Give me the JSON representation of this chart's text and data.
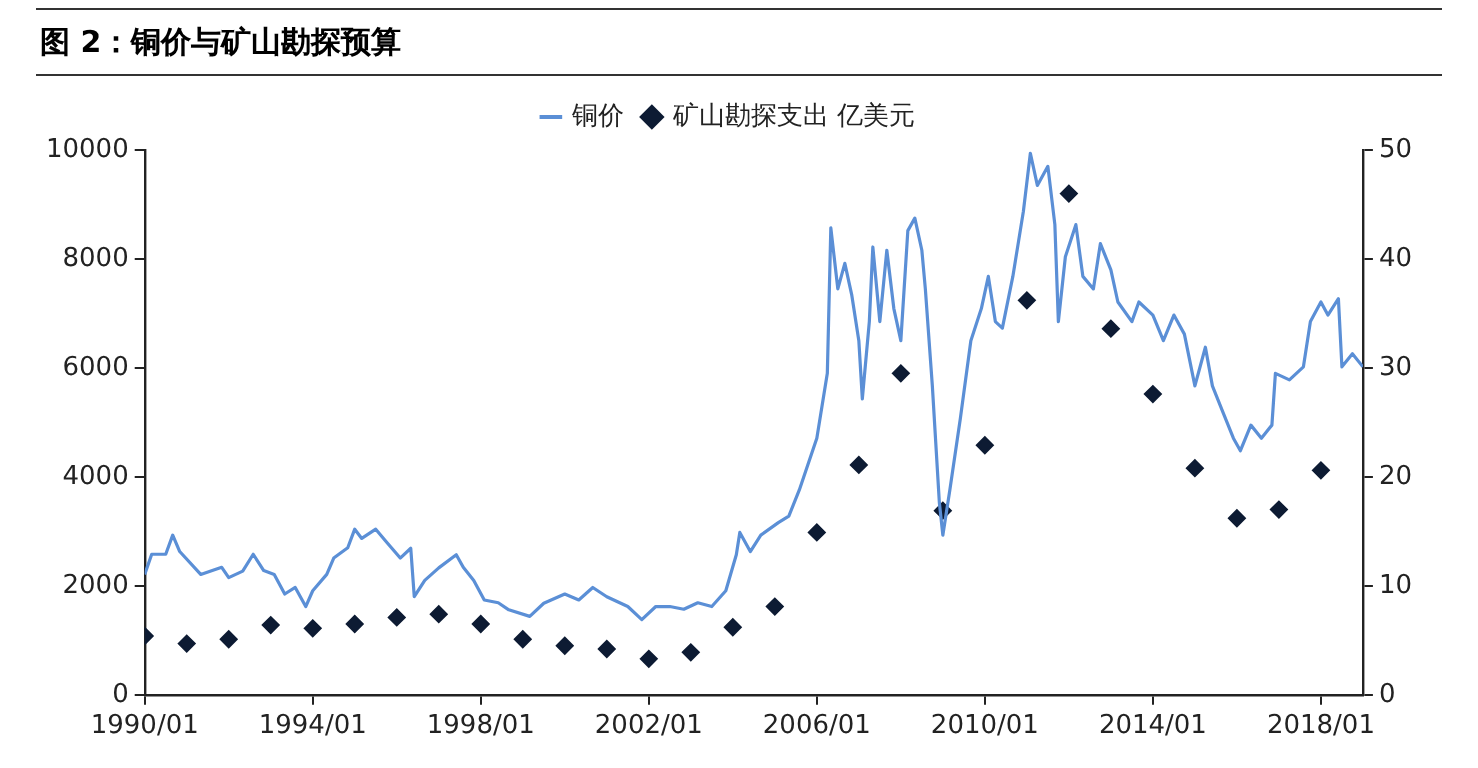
{
  "chart_data": {
    "type": "line",
    "title": "图 2：铜价与矿山勘探预算",
    "xlim": [
      "1990-01",
      "2019-01"
    ],
    "xticks": [
      {
        "value": "1990-01",
        "label": "1990/01"
      },
      {
        "value": "1994-01",
        "label": "1994/01"
      },
      {
        "value": "1998-01",
        "label": "1998/01"
      },
      {
        "value": "2002-01",
        "label": "2002/01"
      },
      {
        "value": "2006-01",
        "label": "2006/01"
      },
      {
        "value": "2010-01",
        "label": "2010/01"
      },
      {
        "value": "2014-01",
        "label": "2014/01"
      },
      {
        "value": "2018-01",
        "label": "2018/01"
      }
    ],
    "ylim": [
      0,
      10000
    ],
    "yticks": [
      0,
      2000,
      4000,
      6000,
      8000,
      10000
    ],
    "y2lim": [
      0,
      50
    ],
    "y2ticks": [
      0,
      10,
      20,
      30,
      40,
      50
    ],
    "grid": false,
    "legend": "top",
    "series": [
      {
        "name": "铜价",
        "color": "#5b8fd6",
        "marker": "none",
        "line_style": "solid",
        "x": [
          "1990-01",
          "1990-03",
          "1990-07",
          "1990-09",
          "1990-11",
          "1991-05",
          "1991-11",
          "1992-01",
          "1992-05",
          "1992-08",
          "1992-11",
          "1993-02",
          "1993-05",
          "1993-08",
          "1993-11",
          "1994-01",
          "1994-05",
          "1994-07",
          "1994-11",
          "1995-01",
          "1995-03",
          "1995-07",
          "1995-10",
          "1996-02",
          "1996-05",
          "1996-06",
          "1996-09",
          "1997-01",
          "1997-06",
          "1997-08",
          "1997-11",
          "1998-02",
          "1998-06",
          "1998-09",
          "1999-03",
          "1999-07",
          "2000-01",
          "2000-05",
          "2000-09",
          "2001-01",
          "2001-07",
          "2001-11",
          "2002-03",
          "2002-07",
          "2002-11",
          "2003-03",
          "2003-07",
          "2003-11",
          "2004-02",
          "2004-03",
          "2004-06",
          "2004-09",
          "2005-02",
          "2005-05",
          "2005-08",
          "2006-01",
          "2006-04",
          "2006-05",
          "2006-07",
          "2006-09",
          "2006-11",
          "2007-01",
          "2007-02",
          "2007-04",
          "2007-05",
          "2007-07",
          "2007-09",
          "2007-11",
          "2008-01",
          "2008-03",
          "2008-05",
          "2008-07",
          "2008-08",
          "2008-10",
          "2008-12",
          "2009-01",
          "2009-03",
          "2009-06",
          "2009-09",
          "2009-12",
          "2010-02",
          "2010-04",
          "2010-06",
          "2010-09",
          "2010-12",
          "2011-02",
          "2011-04",
          "2011-07",
          "2011-09",
          "2011-10",
          "2011-12",
          "2012-03",
          "2012-05",
          "2012-08",
          "2012-10",
          "2013-01",
          "2013-03",
          "2013-07",
          "2013-09",
          "2014-01",
          "2014-04",
          "2014-07",
          "2014-10",
          "2015-01",
          "2015-04",
          "2015-06",
          "2015-09",
          "2015-12",
          "2016-02",
          "2016-05",
          "2016-08",
          "2016-11",
          "2016-12",
          "2017-04",
          "2017-08",
          "2017-10",
          "2018-01",
          "2018-03",
          "2018-06",
          "2018-07",
          "2018-10",
          "2019-01"
        ],
        "values": [
          2210,
          2580,
          2580,
          2930,
          2630,
          2210,
          2340,
          2150,
          2270,
          2580,
          2280,
          2210,
          1850,
          1970,
          1620,
          1910,
          2210,
          2510,
          2700,
          3040,
          2870,
          3040,
          2810,
          2510,
          2690,
          1800,
          2100,
          2330,
          2570,
          2340,
          2100,
          1740,
          1690,
          1560,
          1440,
          1680,
          1850,
          1740,
          1970,
          1800,
          1620,
          1380,
          1620,
          1620,
          1570,
          1690,
          1620,
          1910,
          2570,
          2980,
          2630,
          2930,
          3160,
          3280,
          3760,
          4710,
          5900,
          8570,
          7450,
          7920,
          7330,
          6500,
          5430,
          6850,
          8220,
          6850,
          8160,
          7090,
          6500,
          8520,
          8750,
          8160,
          7450,
          5670,
          3530,
          2930,
          3760,
          5070,
          6500,
          7090,
          7680,
          6850,
          6730,
          7680,
          8870,
          9940,
          9350,
          9700,
          8630,
          6850,
          8040,
          8630,
          7680,
          7450,
          8280,
          7800,
          7210,
          6850,
          7210,
          6970,
          6500,
          6970,
          6620,
          5670,
          6380,
          5670,
          5190,
          4710,
          4480,
          4950,
          4710,
          4950,
          5900,
          5780,
          6020,
          6850,
          7210,
          6970,
          7270,
          6020,
          6260,
          6020
        ]
      },
      {
        "name": "矿山勘探支出 亿美元",
        "type": "scatter",
        "axis": "y2",
        "color": "#0d1b33",
        "marker": "diamond",
        "x": [
          "1990-01",
          "1991-01",
          "1992-01",
          "1993-01",
          "1994-01",
          "1995-01",
          "1996-01",
          "1997-01",
          "1998-01",
          "1999-01",
          "2000-01",
          "2001-01",
          "2002-01",
          "2003-01",
          "2004-01",
          "2005-01",
          "2006-01",
          "2007-01",
          "2008-01",
          "2009-01",
          "2010-01",
          "2011-01",
          "2012-01",
          "2013-01",
          "2014-01",
          "2015-01",
          "2016-01",
          "2017-01",
          "2018-01"
        ],
        "values": [
          5.4,
          4.7,
          5.1,
          6.4,
          6.1,
          6.5,
          7.1,
          7.4,
          6.5,
          5.1,
          4.5,
          4.2,
          3.3,
          3.9,
          6.2,
          8.1,
          14.9,
          21.1,
          29.5,
          16.9,
          22.9,
          36.2,
          46.0,
          33.6,
          27.6,
          20.8,
          16.2,
          17.0,
          20.6
        ]
      }
    ]
  }
}
